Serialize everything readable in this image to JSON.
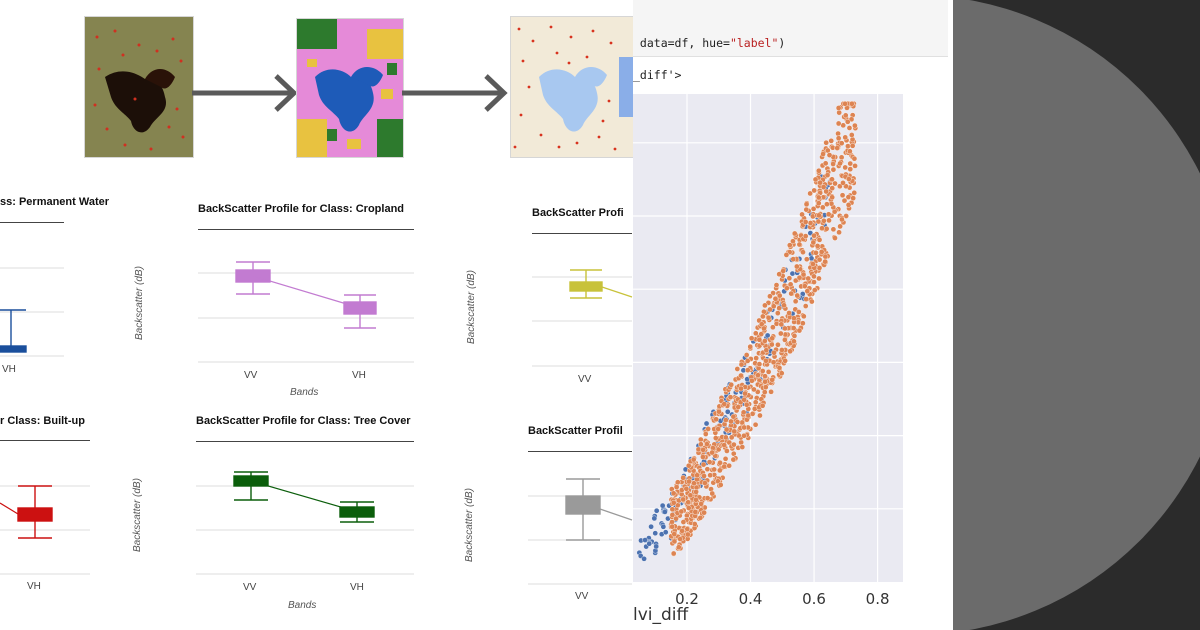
{
  "maps": [
    {
      "name": "sentinel-composite-map"
    },
    {
      "name": "landcover-classification-map"
    },
    {
      "name": "basemap-with-sample-points"
    }
  ],
  "boxplots": {
    "y_axis_label": "Backscatter (dB)",
    "x_axis_label": "Bands",
    "panels": [
      {
        "title": "BackScatter Profile for Class: Permanent Water",
        "shown_title": "ss: Permanent Water",
        "color": "#1a4f9c",
        "ticks": [
          "VH"
        ]
      },
      {
        "title": "BackScatter Profile for Class: Cropland",
        "shown_title": "BackScatter Profile for Class: Cropland",
        "color": "#c27bd1",
        "ticks": [
          "VV",
          "VH"
        ]
      },
      {
        "title": "BackScatter Profile for Class: Grassland",
        "shown_title": "BackScatter Profi",
        "color": "#c8c23a",
        "ticks": [
          "VV"
        ]
      },
      {
        "title": "BackScatter Profile for Class: Built-up",
        "shown_title": "r Class: Built-up",
        "color": "#cc1111",
        "ticks": [
          "VH"
        ]
      },
      {
        "title": "BackScatter Profile for Class: Tree Cover",
        "shown_title": "BackScatter Profile for Class: Tree Cover",
        "color": "#0b5e0b",
        "ticks": [
          "VV",
          "VH"
        ]
      },
      {
        "title": "BackScatter Profile for Class: Bare",
        "shown_title": "BackScatter Profil",
        "color": "#9a9a9a",
        "ticks": [
          "VV"
        ]
      }
    ]
  },
  "notebook": {
    "code_line_prefix": " data=df, hue=",
    "code_line_string": "\"label\"",
    "code_line_suffix": ")",
    "output_line": "_diff'>",
    "scatter_xlabel": "lvi_diff"
  },
  "chart_data": {
    "type": "scatter",
    "xlabel": "lvi_diff",
    "ylabel": "",
    "xticks": [
      "0.2",
      "0.4",
      "0.6",
      "0.8"
    ],
    "xlim": [
      0.03,
      0.88
    ],
    "ylim": [
      0,
      1
    ],
    "grid": true,
    "series": [
      {
        "color": "#4c72b0",
        "values": [
          [
            0.05,
            0.06
          ],
          [
            0.08,
            0.09
          ],
          [
            0.1,
            0.1
          ],
          [
            0.12,
            0.12
          ],
          [
            0.14,
            0.13
          ],
          [
            0.16,
            0.14
          ],
          [
            0.18,
            0.17
          ],
          [
            0.2,
            0.2
          ],
          [
            0.22,
            0.21
          ],
          [
            0.25,
            0.26
          ],
          [
            0.3,
            0.32
          ],
          [
            0.35,
            0.36
          ],
          [
            0.4,
            0.42
          ],
          [
            0.45,
            0.5
          ],
          [
            0.5,
            0.57
          ],
          [
            0.55,
            0.62
          ],
          [
            0.6,
            0.7
          ],
          [
            0.62,
            0.75
          ],
          [
            0.65,
            0.82
          ],
          [
            0.66,
            0.86
          ]
        ]
      },
      {
        "color": "#dd8452",
        "values": [
          [
            0.15,
            0.12
          ],
          [
            0.2,
            0.16
          ],
          [
            0.25,
            0.22
          ],
          [
            0.3,
            0.28
          ],
          [
            0.35,
            0.34
          ],
          [
            0.4,
            0.4
          ],
          [
            0.45,
            0.47
          ],
          [
            0.5,
            0.54
          ],
          [
            0.55,
            0.62
          ],
          [
            0.6,
            0.7
          ],
          [
            0.65,
            0.8
          ],
          [
            0.7,
            0.88
          ],
          [
            0.73,
            0.93
          ]
        ]
      }
    ]
  },
  "colors": {
    "dark_panel": "#2b2b2b",
    "gray_disk": "#6b6b6b",
    "plot_bg": "#eaeaf2"
  }
}
